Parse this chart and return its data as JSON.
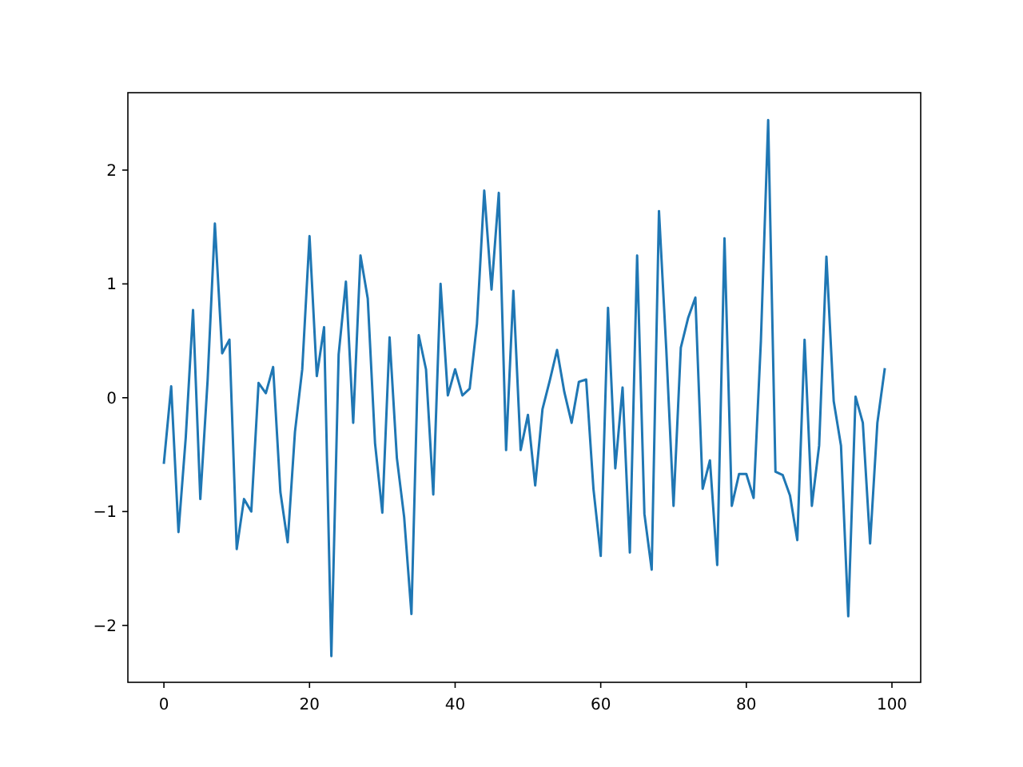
{
  "chart_data": {
    "type": "line",
    "x": [
      0,
      1,
      2,
      3,
      4,
      5,
      6,
      7,
      8,
      9,
      10,
      11,
      12,
      13,
      14,
      15,
      16,
      17,
      18,
      19,
      20,
      21,
      22,
      23,
      24,
      25,
      26,
      27,
      28,
      29,
      30,
      31,
      32,
      33,
      34,
      35,
      36,
      37,
      38,
      39,
      40,
      41,
      42,
      43,
      44,
      45,
      46,
      47,
      48,
      49,
      50,
      51,
      52,
      53,
      54,
      55,
      56,
      57,
      58,
      59,
      60,
      61,
      62,
      63,
      64,
      65,
      66,
      67,
      68,
      69,
      70,
      71,
      72,
      73,
      74,
      75,
      76,
      77,
      78,
      79,
      80,
      81,
      82,
      83,
      84,
      85,
      86,
      87,
      88,
      89,
      90,
      91,
      92,
      93,
      94,
      95,
      96,
      97,
      98,
      99
    ],
    "series": [
      {
        "color": "#1f77b4",
        "values": [
          -0.57,
          0.1,
          -1.18,
          -0.35,
          0.77,
          -0.89,
          0.15,
          1.53,
          0.39,
          0.51,
          -1.33,
          -0.89,
          -1.0,
          0.13,
          0.04,
          0.27,
          -0.83,
          -1.27,
          -0.3,
          0.25,
          1.42,
          0.19,
          0.62,
          -2.27,
          0.38,
          1.02,
          -0.22,
          1.25,
          0.87,
          -0.4,
          -1.01,
          0.53,
          -0.53,
          -1.05,
          -1.9,
          0.55,
          0.25,
          -0.85,
          1.0,
          0.02,
          0.25,
          0.02,
          0.08,
          0.65,
          1.82,
          0.95,
          1.8,
          -0.46,
          0.94,
          -0.46,
          -0.15,
          -0.77,
          -0.1,
          0.15,
          0.42,
          0.05,
          -0.22,
          0.14,
          0.16,
          -0.8,
          -1.39,
          0.79,
          -0.62,
          0.09,
          -1.36,
          1.25,
          -1.02,
          -1.51,
          1.64,
          0.43,
          -0.95,
          0.44,
          0.7,
          0.88,
          -0.8,
          -0.55,
          -1.47,
          1.4,
          -0.95,
          -0.67,
          -0.67,
          -0.88,
          0.5,
          2.44,
          -0.65,
          -0.68,
          -0.86,
          -1.25,
          0.51,
          -0.95,
          -0.42,
          1.24,
          -0.03,
          -0.42,
          -1.92,
          0.01,
          -0.22,
          -1.28,
          -0.22,
          0.25
        ]
      }
    ],
    "xlim": [
      -4.95,
      103.95
    ],
    "ylim": [
      -2.5,
      2.68
    ],
    "xticks": [
      0,
      20,
      40,
      60,
      80,
      100
    ],
    "yticks": [
      -2,
      -1,
      0,
      1,
      2
    ]
  }
}
